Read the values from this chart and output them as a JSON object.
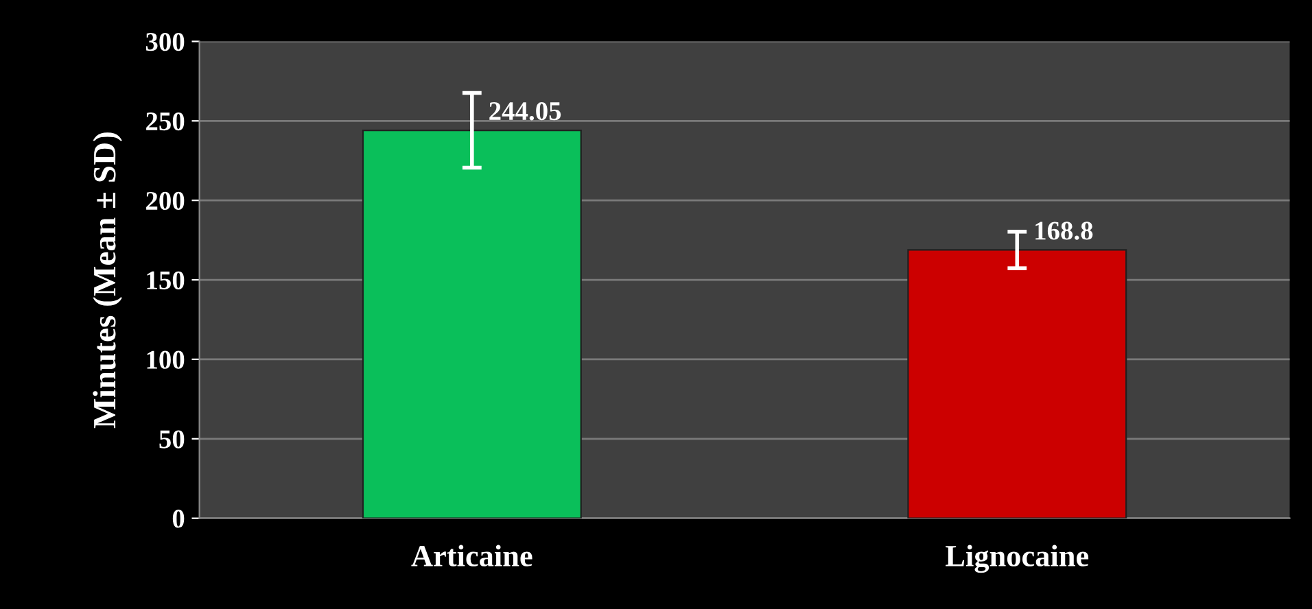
{
  "chart_data": {
    "type": "bar",
    "ylabel": "Minutes (Mean ± SD)",
    "categories": [
      "Articaine",
      "Lignocaine"
    ],
    "values": [
      244.05,
      168.8
    ],
    "colors": [
      "#0abf5a",
      "#cc0000"
    ],
    "errors": [
      23.5,
      11.5
    ],
    "value_labels": [
      "244.05",
      "168.8"
    ],
    "ylim": [
      0,
      300
    ],
    "yticks": [
      0,
      50,
      100,
      150,
      200,
      250,
      300
    ],
    "grid": "y"
  }
}
